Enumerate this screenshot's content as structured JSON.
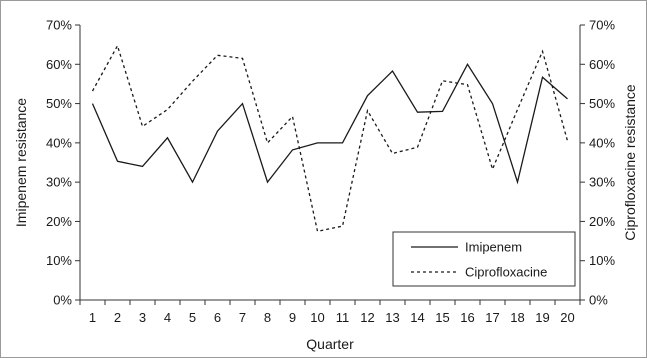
{
  "chart_data": {
    "type": "line",
    "x": [
      "1",
      "2",
      "3",
      "4",
      "5",
      "6",
      "7",
      "8",
      "9",
      "10",
      "11",
      "12",
      "13",
      "14",
      "15",
      "16",
      "17",
      "18",
      "19",
      "20"
    ],
    "series": [
      {
        "name": "Imipenem",
        "axis": "left",
        "line_style": "solid",
        "values": [
          50,
          35.3,
          34,
          41.3,
          30,
          43,
          50,
          30,
          38.2,
          40,
          40,
          52,
          58.3,
          47.8,
          48,
          60,
          50,
          30,
          56.7,
          51.2
        ]
      },
      {
        "name": "Ciprofloxacine",
        "axis": "right",
        "line_style": "dashed",
        "values": [
          53.2,
          64.7,
          44.2,
          48.5,
          55.7,
          62.3,
          61.5,
          40,
          46.7,
          17.5,
          18.8,
          48.2,
          37.3,
          38.9,
          55.8,
          54.8,
          33.3,
          48.5,
          63.3,
          40.5
        ]
      }
    ],
    "xlabel": "Quarter",
    "ylabel": "Imipenem resistance",
    "y2label": "Ciprofloxacine resistance",
    "ylim": [
      0,
      70
    ],
    "y2lim": [
      0,
      70
    ],
    "yticks": [
      "0%",
      "10%",
      "20%",
      "30%",
      "40%",
      "50%",
      "60%",
      "70%"
    ],
    "y2ticks": [
      "0%",
      "10%",
      "20%",
      "30%",
      "40%",
      "50%",
      "60%",
      "70%"
    ],
    "grid": false,
    "legend_position": "bottom-right"
  },
  "colors": {
    "line": "#1a1a1a",
    "axis": "#333333"
  }
}
